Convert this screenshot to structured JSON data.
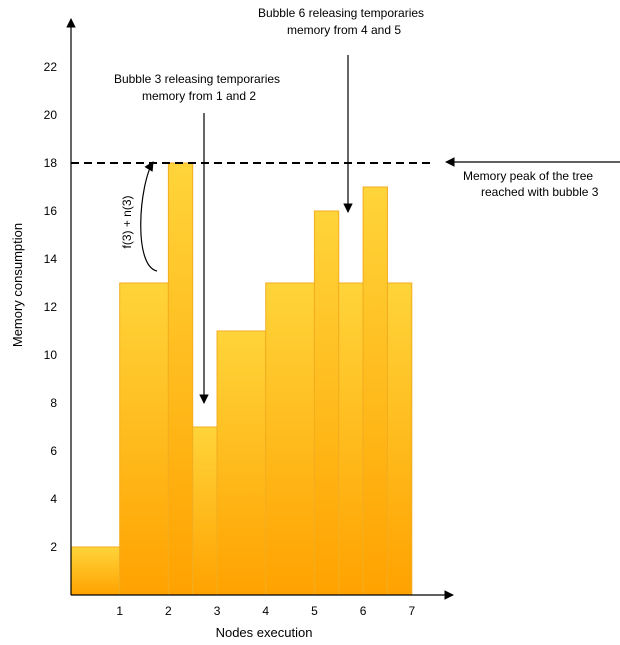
{
  "chart_data": {
    "type": "bar",
    "xlabel": "Nodes execution",
    "ylabel": "Memory consumption",
    "x_ticks": [
      1,
      2,
      3,
      4,
      5,
      6,
      7
    ],
    "y_ticks": [
      2,
      4,
      6,
      8,
      10,
      12,
      14,
      16,
      18,
      20,
      22
    ],
    "xlim": [
      0,
      7.6
    ],
    "ylim": [
      0,
      24
    ],
    "steps": [
      {
        "x0": 0.0,
        "x1": 1.0,
        "value": 2
      },
      {
        "x0": 1.0,
        "x1": 2.0,
        "value": 13
      },
      {
        "x0": 2.0,
        "x1": 2.5,
        "value": 18
      },
      {
        "x0": 2.5,
        "x1": 3.0,
        "value": 7
      },
      {
        "x0": 3.0,
        "x1": 4.0,
        "value": 11
      },
      {
        "x0": 4.0,
        "x1": 5.0,
        "value": 13
      },
      {
        "x0": 5.0,
        "x1": 5.5,
        "value": 16
      },
      {
        "x0": 5.5,
        "x1": 6.0,
        "value": 13
      },
      {
        "x0": 6.0,
        "x1": 6.5,
        "value": 17
      },
      {
        "x0": 6.5,
        "x1": 7.0,
        "value": 13
      }
    ],
    "peak_line": {
      "value": 18
    },
    "bar_colors": {
      "top": "#ffd43a",
      "bottom": "#ffa200"
    },
    "annotations": {
      "bubble3": [
        "Bubble 3 releasing temporaries",
        "memory from 1 and 2"
      ],
      "bubble6": [
        "Bubble 6 releasing temporaries",
        "memory from 4 and 5"
      ],
      "peak": [
        "Memory peak of the tree",
        "reached with bubble 3"
      ],
      "formula": "f(3) + n(3)"
    }
  }
}
